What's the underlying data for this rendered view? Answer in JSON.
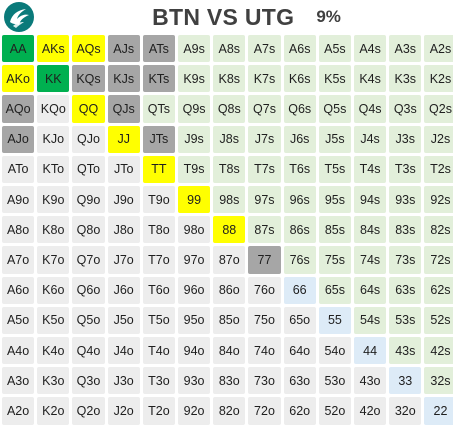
{
  "header": {
    "title": "BTN VS UTG",
    "percent": "9%"
  },
  "legend_colors": {
    "green": "#00b050",
    "yellow": "#ffff00",
    "gray": "#a6a6a6",
    "suited": "#e2efda",
    "pocket_pair": "#ddebf7",
    "offsuit": "#ededed"
  },
  "matrix": {
    "rows": [
      [
        "AA",
        "AKs",
        "AQs",
        "AJs",
        "ATs",
        "A9s",
        "A8s",
        "A7s",
        "A6s",
        "A5s",
        "A4s",
        "A3s",
        "A2s"
      ],
      [
        "AKo",
        "KK",
        "KQs",
        "KJs",
        "KTs",
        "K9s",
        "K8s",
        "K7s",
        "K6s",
        "K5s",
        "K4s",
        "K3s",
        "K2s"
      ],
      [
        "AQo",
        "KQo",
        "QQ",
        "QJs",
        "QTs",
        "Q9s",
        "Q8s",
        "Q7s",
        "Q6s",
        "Q5s",
        "Q4s",
        "Q3s",
        "Q2s"
      ],
      [
        "AJo",
        "KJo",
        "QJo",
        "JJ",
        "JTs",
        "J9s",
        "J8s",
        "J7s",
        "J6s",
        "J5s",
        "J4s",
        "J3s",
        "J2s"
      ],
      [
        "ATo",
        "KTo",
        "QTo",
        "JTo",
        "TT",
        "T9s",
        "T8s",
        "T7s",
        "T6s",
        "T5s",
        "T4s",
        "T3s",
        "T2s"
      ],
      [
        "A9o",
        "K9o",
        "Q9o",
        "J9o",
        "T9o",
        "99",
        "98s",
        "97s",
        "96s",
        "95s",
        "94s",
        "93s",
        "92s"
      ],
      [
        "A8o",
        "K8o",
        "Q8o",
        "J8o",
        "T8o",
        "98o",
        "88",
        "87s",
        "86s",
        "85s",
        "84s",
        "83s",
        "82s"
      ],
      [
        "A7o",
        "K7o",
        "Q7o",
        "J7o",
        "T7o",
        "97o",
        "87o",
        "77",
        "76s",
        "75s",
        "74s",
        "73s",
        "72s"
      ],
      [
        "A6o",
        "K6o",
        "Q6o",
        "J6o",
        "T6o",
        "96o",
        "86o",
        "76o",
        "66",
        "65s",
        "64s",
        "63s",
        "62s"
      ],
      [
        "A5o",
        "K5o",
        "Q5o",
        "J5o",
        "T5o",
        "95o",
        "85o",
        "75o",
        "65o",
        "55",
        "54s",
        "53s",
        "52s"
      ],
      [
        "A4o",
        "K4o",
        "Q4o",
        "J4o",
        "T4o",
        "94o",
        "84o",
        "74o",
        "64o",
        "54o",
        "44",
        "43s",
        "42s"
      ],
      [
        "A3o",
        "K3o",
        "Q3o",
        "J3o",
        "T3o",
        "93o",
        "83o",
        "73o",
        "63o",
        "53o",
        "43o",
        "33",
        "32s"
      ],
      [
        "A2o",
        "K2o",
        "Q2o",
        "J2o",
        "T2o",
        "92o",
        "82o",
        "72o",
        "62o",
        "52o",
        "42o",
        "32o",
        "22"
      ]
    ],
    "highlights": {
      "AA": "green",
      "KK": "green",
      "AKs": "yellow",
      "AQs": "yellow",
      "AKo": "yellow",
      "QQ": "yellow",
      "JJ": "yellow",
      "TT": "yellow",
      "99": "yellow",
      "88": "yellow",
      "AJs": "gray",
      "ATs": "gray",
      "KQs": "gray",
      "KJs": "gray",
      "KTs": "gray",
      "QJs": "gray",
      "AQo": "gray",
      "AJo": "gray",
      "JTs": "gray",
      "77": "gray"
    }
  }
}
